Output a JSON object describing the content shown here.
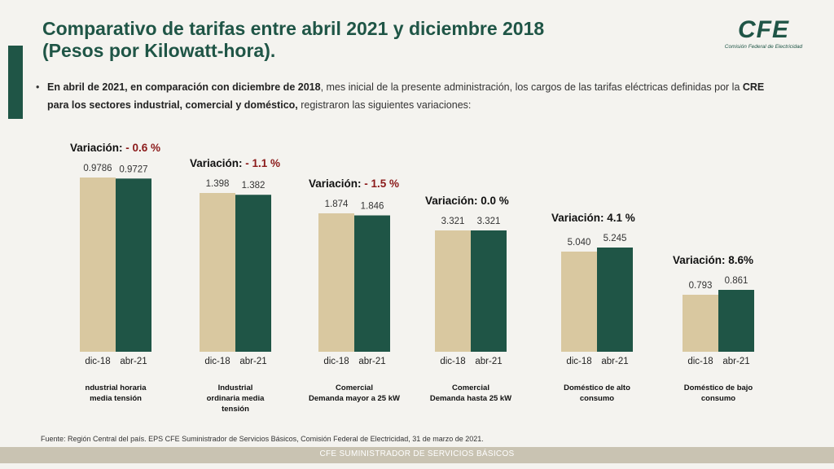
{
  "title": "Comparativo de tarifas entre abril 2021 y diciembre 2018\n(Pesos por Kilowatt-hora).",
  "logo": {
    "mark": "CFE",
    "subtitle": "Comisión Federal de Electricidad"
  },
  "intro": {
    "bullet": "•",
    "part1": "En abril de 2021, en comparación con diciembre de 2018",
    "part2": ", mes inicial de la presente administración, los cargos de las tarifas eléctricas definidas por la ",
    "part3": "CRE para los sectores industrial, comercial y doméstico,",
    "part4": " registraron las siguientes variaciones:"
  },
  "footer_note": "Fuente: Región Central del país. EPS CFE Suministrador de Servicios Básicos, Comisión Federal de Electricidad, 31 de marzo de 2021.",
  "footer_bar": "CFE SUMINISTRADOR DE SERVICIOS BÁSICOS",
  "colors": {
    "beige": "#d9c8a0",
    "green": "#1f5546",
    "negative": "#8b1a1a"
  },
  "chart_data": {
    "type": "bar",
    "series": [
      {
        "name": "dic-18",
        "values": [
          0.9786,
          1.398,
          1.874,
          3.321,
          5.04,
          0.793
        ],
        "labels": [
          "0.9786",
          "1.398",
          "1.874",
          "3.321",
          "5.040",
          "0.793"
        ]
      },
      {
        "name": "abr-21",
        "values": [
          0.9727,
          1.382,
          1.846,
          3.321,
          5.245,
          0.861
        ],
        "labels": [
          "0.9727",
          "1.382",
          "1.846",
          "3.321",
          "5.245",
          "0.861"
        ]
      }
    ],
    "groups": [
      {
        "category": [
          "ndustrial horaria",
          "media tensión"
        ],
        "variation_prefix": "Variación:",
        "variation_value": "- 0.6 %",
        "negative": true
      },
      {
        "category": [
          "Industrial",
          "ordinaria media",
          "tensión"
        ],
        "variation_prefix": "Variación:",
        "variation_value": "- 1.1 %",
        "negative": true
      },
      {
        "category": [
          "Comercial",
          "Demanda mayor a 25 kW"
        ],
        "variation_prefix": "Variación:",
        "variation_value": "- 1.5 %",
        "negative": true
      },
      {
        "category": [
          "Comercial",
          "Demanda hasta  25 kW"
        ],
        "variation_prefix": "Variación:",
        "variation_value": "0.0 %",
        "negative": false
      },
      {
        "category": [
          "Doméstico de alto",
          "consumo"
        ],
        "variation_prefix": "Variación:",
        "variation_value": "4.1 %",
        "negative": false
      },
      {
        "category": [
          "Doméstico de bajo",
          "consumo"
        ],
        "variation_prefix": "Variación:",
        "variation_value": "8.6%",
        "negative": false
      }
    ]
  }
}
